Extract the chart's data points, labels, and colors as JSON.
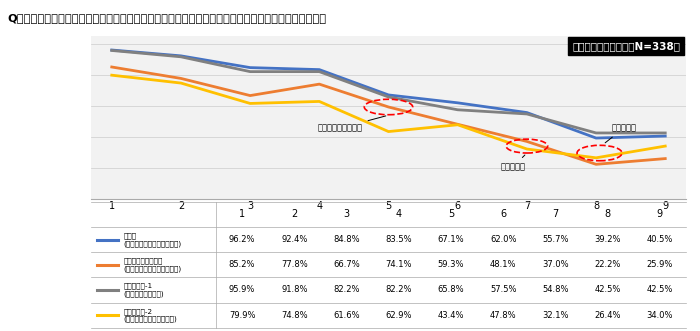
{
  "title": "Q　あなたの職場で、女性社員がネイルのオシャレを施す場合、どの程度なら問題ないと考えますか？",
  "subtitle": "製造業　職種別回答（N=338）",
  "x_labels": [
    "1",
    "2",
    "3",
    "4",
    "5",
    "6",
    "7",
    "8",
    "9"
  ],
  "series": [
    {
      "name": "事務系\n(管理・総務・人事部門など)",
      "color": "#4472C4",
      "values": [
        96.2,
        92.4,
        84.8,
        83.5,
        67.1,
        62.0,
        55.7,
        39.2,
        40.5
      ],
      "linestyle": "solid",
      "linewidth": 2.0
    },
    {
      "name": "営業・接客・販売系\n(顧客と対面することが多い)",
      "color": "#ED7D31",
      "values": [
        85.2,
        77.8,
        66.7,
        74.1,
        59.3,
        48.1,
        37.0,
        22.2,
        25.9
      ],
      "linestyle": "solid",
      "linewidth": 2.0
    },
    {
      "name": "専門・技術-1\n(デスクワーク中心)",
      "color": "#808080",
      "values": [
        95.9,
        91.8,
        82.2,
        82.2,
        65.8,
        57.5,
        54.8,
        42.5,
        42.5
      ],
      "linestyle": "solid",
      "linewidth": 2.0
    },
    {
      "name": "専門・技術-2\n(工場・建設など現場中心)",
      "color": "#FFC000",
      "values": [
        79.9,
        74.8,
        61.6,
        62.9,
        43.4,
        47.8,
        32.1,
        26.4,
        34.0
      ],
      "linestyle": "solid",
      "linewidth": 2.0
    }
  ],
  "ylim": [
    0,
    105
  ],
  "table_data": [
    [
      "96.2%",
      "92.4%",
      "84.8%",
      "83.5%",
      "67.1%",
      "62.0%",
      "55.7%",
      "39.2%",
      "40.5%"
    ],
    [
      "85.2%",
      "77.8%",
      "66.7%",
      "74.1%",
      "59.3%",
      "48.1%",
      "37.0%",
      "22.2%",
      "25.9%"
    ],
    [
      "95.9%",
      "91.8%",
      "82.2%",
      "82.2%",
      "65.8%",
      "57.5%",
      "54.8%",
      "42.5%",
      "42.5%"
    ],
    [
      "79.9%",
      "74.8%",
      "61.6%",
      "62.9%",
      "43.4%",
      "47.8%",
      "32.1%",
      "26.4%",
      "34.0%"
    ]
  ],
  "row_labels": [
    [
      "事務系",
      "(管理・総務・人事部門など)"
    ],
    [
      "営業・接客・販売系",
      "(顧客と対面することが多い)"
    ],
    [
      "専門・技術-1",
      "(デスクワーク中心)"
    ],
    [
      "専門・技術-2",
      "(工場・建設など現場中心)"
    ]
  ],
  "row_colors": [
    "#4472C4",
    "#ED7D31",
    "#808080",
    "#FFC000"
  ],
  "bg_color": "#FFFFFF",
  "plot_bg": "#F2F2F2"
}
